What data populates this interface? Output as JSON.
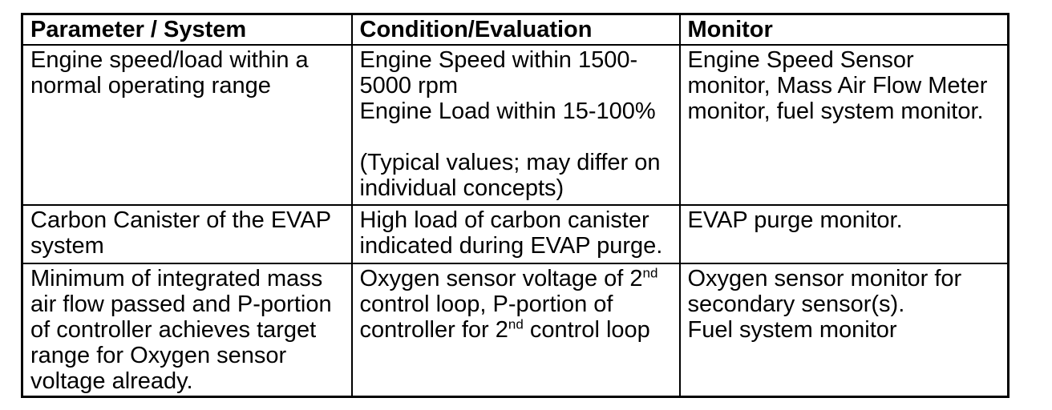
{
  "colors": {
    "ink": "#000000",
    "paper": "#ffffff"
  },
  "table": {
    "columns": [
      "Parameter / System",
      "Condition/Evaluation",
      "Monitor"
    ],
    "rows": [
      {
        "cells": [
          [
            {
              "t": "Engine speed/load within a\nnormal operating range"
            }
          ],
          [
            {
              "t": "Engine Speed within 1500-\n5000 rpm\nEngine Load within 15-100%\n\n(Typical values; may differ on\nindividual concepts)"
            }
          ],
          [
            {
              "t": "Engine Speed Sensor\nmonitor, Mass Air Flow Meter\nmonitor, fuel system monitor."
            }
          ]
        ]
      },
      {
        "cells": [
          [
            {
              "t": "Carbon Canister of the EVAP\nsystem"
            }
          ],
          [
            {
              "t": "High load of carbon canister\nindicated during EVAP purge."
            }
          ],
          [
            {
              "t": "EVAP purge monitor."
            }
          ]
        ]
      },
      {
        "cells": [
          [
            {
              "t": "Minimum of integrated mass\nair flow passed and P-portion\nof controller achieves target\nrange for Oxygen sensor\nvoltage already."
            }
          ],
          [
            {
              "t": "Oxygen sensor voltage of 2"
            },
            {
              "t": "nd",
              "sup": true
            },
            {
              "t": "\ncontrol loop, P-portion of\ncontroller for 2"
            },
            {
              "t": "nd",
              "sup": true
            },
            {
              "t": " control loop"
            }
          ],
          [
            {
              "t": "Oxygen sensor monitor for\nsecondary sensor(s).\nFuel system monitor"
            }
          ]
        ]
      }
    ]
  }
}
